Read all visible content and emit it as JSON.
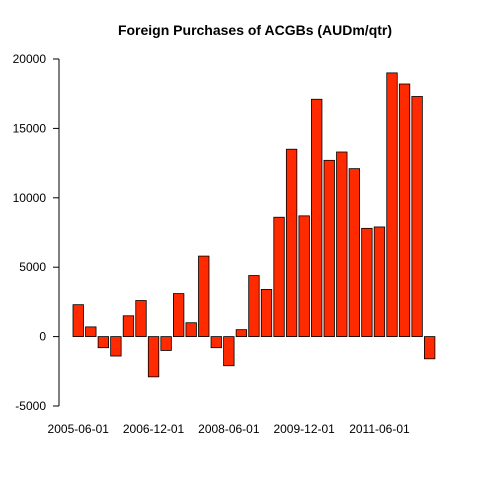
{
  "chart_data": {
    "type": "bar",
    "title": "Foreign Purchases of ACGBs (AUDm/qtr)",
    "xlabel": "",
    "ylabel": "",
    "ylim": [
      -5000,
      20000
    ],
    "y_ticks": [
      -5000,
      0,
      5000,
      10000,
      15000,
      20000
    ],
    "y_tick_labels": [
      "-5000",
      "0",
      "5000",
      "10000",
      "15000",
      "20000"
    ],
    "bar_color": "#ff2a00",
    "grid": false,
    "legend": "none",
    "categories": [
      "2005-06-01",
      "2005-09-01",
      "2005-12-01",
      "2006-03-01",
      "2006-06-01",
      "2006-09-01",
      "2006-12-01",
      "2007-03-01",
      "2007-06-01",
      "2007-09-01",
      "2007-12-01",
      "2008-03-01",
      "2008-06-01",
      "2008-09-01",
      "2008-12-01",
      "2009-03-01",
      "2009-06-01",
      "2009-09-01",
      "2009-12-01",
      "2010-03-01",
      "2010-06-01",
      "2010-09-01",
      "2010-12-01",
      "2011-03-01",
      "2011-06-01",
      "2011-09-01",
      "2011-12-01",
      "2012-03-01",
      "2012-06-01"
    ],
    "values": [
      2300,
      700,
      -800,
      -1400,
      1500,
      2600,
      -2900,
      -1000,
      3100,
      1000,
      5800,
      -800,
      -2100,
      500,
      4400,
      3400,
      8600,
      13500,
      8700,
      17100,
      12700,
      13300,
      12100,
      7800,
      7900,
      19000,
      18200,
      17300,
      -1600
    ],
    "x_tick_labels": [
      {
        "label": "2005-06-01",
        "index": 0
      },
      {
        "label": "2006-12-01",
        "index": 6
      },
      {
        "label": "2008-06-01",
        "index": 12
      },
      {
        "label": "2009-12-01",
        "index": 18
      },
      {
        "label": "2011-06-01",
        "index": 24
      }
    ]
  }
}
